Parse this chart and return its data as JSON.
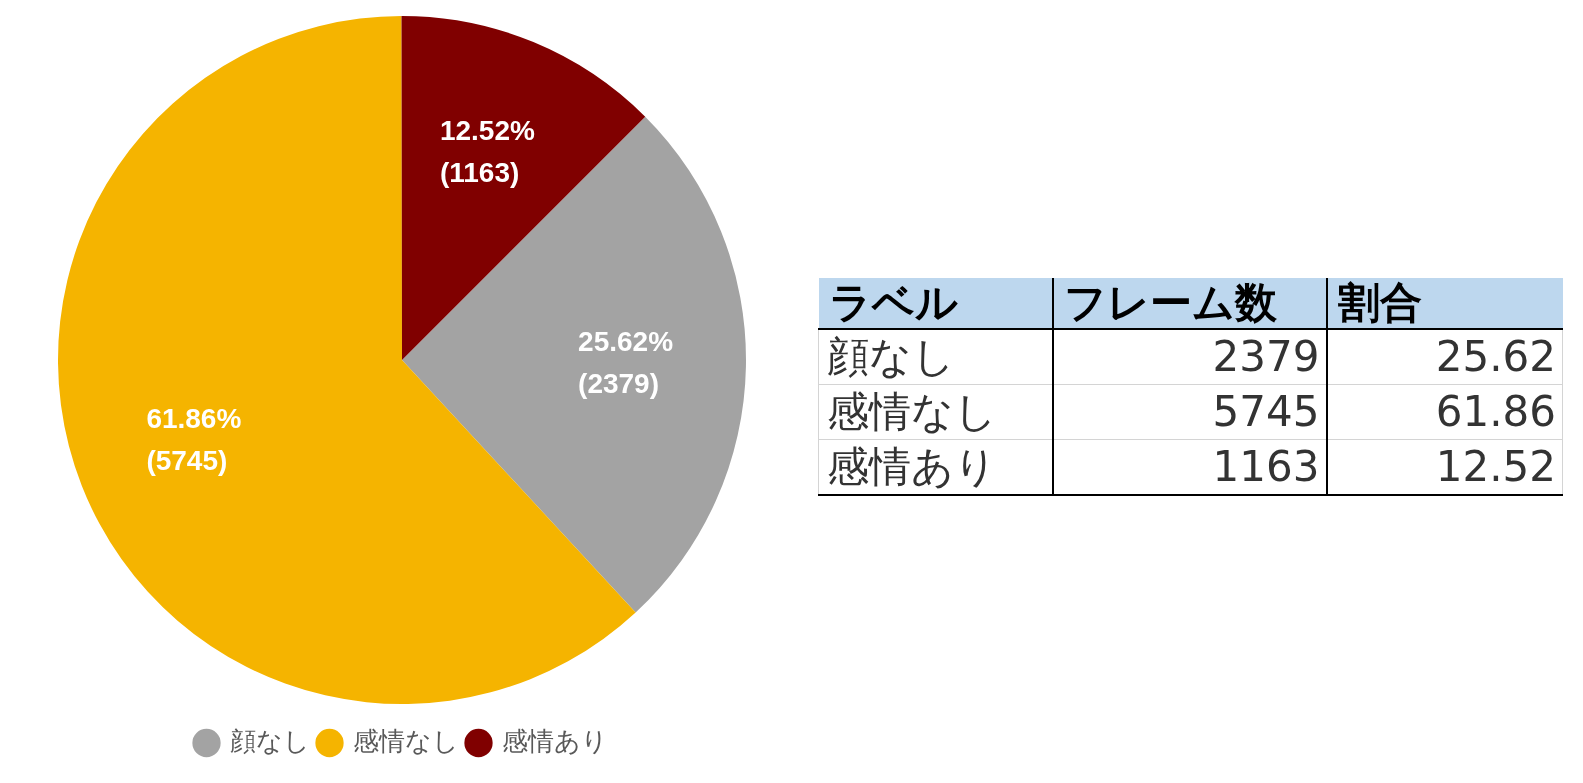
{
  "chart_data": [
    {
      "type": "pie",
      "categories": [
        "顔なし",
        "感情なし",
        "感情あり"
      ],
      "values": [
        2379,
        5745,
        1163
      ],
      "colors": [
        "#a3a3a3",
        "#f5b400",
        "#800000"
      ],
      "value_labels": [
        "25.62%\n(2379)",
        "61.86%\n(5745)",
        "12.52%\n(1163)"
      ],
      "legend": "bottom"
    },
    {
      "type": "other",
      "ylabel": "ラベル",
      "categories": [
        "顔なし",
        "感情なし",
        "感情あり"
      ],
      "series": [
        {
          "name": "フレーム数",
          "values": [
            2379,
            5745,
            1163
          ]
        },
        {
          "name": "割合",
          "values": [
            25.62,
            61.86,
            12.52
          ]
        }
      ],
      "data_labels": true
    }
  ]
}
